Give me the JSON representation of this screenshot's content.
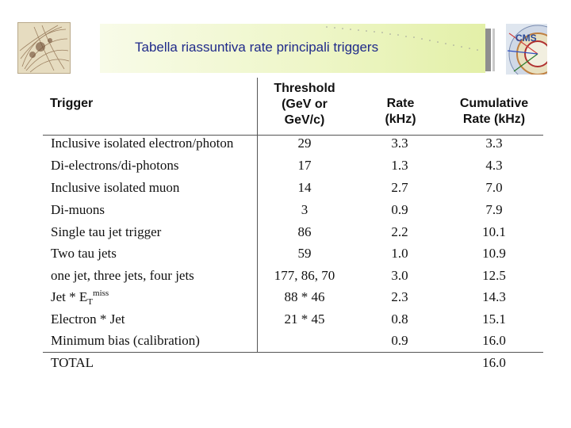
{
  "slide": {
    "title": "Tabella riassuntiva rate principali triggers",
    "left_logo": "particle-tracks-image",
    "right_logo": "CMS",
    "banner_color": "#e3f0a8",
    "title_color": "#1f2a8a"
  },
  "table": {
    "headers": {
      "trigger": "Trigger",
      "threshold": [
        "Threshold",
        "(GeV or",
        "GeV/c)"
      ],
      "rate": [
        "Rate",
        "(kHz)"
      ],
      "cumulative": [
        "Cumulative",
        "Rate (kHz)"
      ]
    },
    "rows": [
      {
        "trigger": "Inclusive isolated electron/photon",
        "threshold": "29",
        "rate": "3.3",
        "cumulative": "3.3"
      },
      {
        "trigger": "Di-electrons/di-photons",
        "threshold": "17",
        "rate": "1.3",
        "cumulative": "4.3"
      },
      {
        "trigger": "Inclusive isolated muon",
        "threshold": "14",
        "rate": "2.7",
        "cumulative": "7.0"
      },
      {
        "trigger": "Di-muons",
        "threshold": "3",
        "rate": "0.9",
        "cumulative": "7.9"
      },
      {
        "trigger": "Single tau jet trigger",
        "threshold": "86",
        "rate": "2.2",
        "cumulative": "10.1"
      },
      {
        "trigger": "Two tau jets",
        "threshold": "59",
        "rate": "1.0",
        "cumulative": "10.9"
      },
      {
        "trigger": "one jet, three jets, four jets",
        "threshold": "177, 86, 70",
        "rate": "3.0",
        "cumulative": "12.5"
      },
      {
        "trigger": {
          "base": "Jet * E",
          "sub": "T",
          "sup": "miss"
        },
        "threshold": "88 * 46",
        "rate": "2.3",
        "cumulative": "14.3"
      },
      {
        "trigger": "Electron * Jet",
        "threshold": "21 * 45",
        "rate": "0.8",
        "cumulative": "15.1"
      },
      {
        "trigger": "Minimum bias (calibration)",
        "threshold": "",
        "rate": "0.9",
        "cumulative": "16.0"
      }
    ],
    "total": {
      "label": "TOTAL",
      "cumulative": "16.0"
    }
  }
}
